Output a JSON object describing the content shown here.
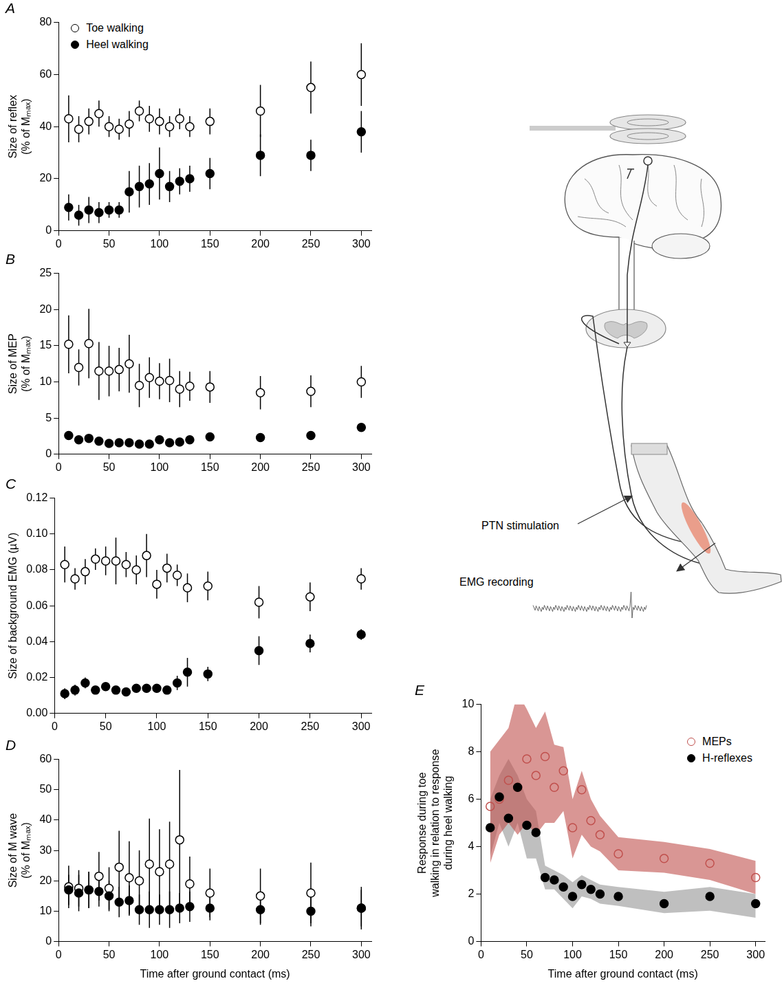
{
  "chart_data": [
    {
      "panel": "A",
      "type": "scatter",
      "y_label": [
        "Size of reflex",
        "(% of Mₘₐₓ)"
      ],
      "x": [
        10,
        20,
        30,
        40,
        50,
        60,
        70,
        80,
        90,
        100,
        110,
        120,
        130,
        150,
        200,
        250,
        300
      ],
      "xlim": [
        0,
        310
      ],
      "xticks": [
        0,
        50,
        100,
        150,
        200,
        250,
        300
      ],
      "ylim": [
        0,
        80
      ],
      "yticks": [
        0,
        20,
        40,
        60,
        80
      ],
      "grid": false,
      "legend": "top-left",
      "series": [
        {
          "name": "Toe walking",
          "color": "#000000",
          "marker": "open_circle",
          "values": [
            43,
            39,
            42,
            45,
            40,
            39,
            41,
            46,
            43,
            42,
            40,
            43,
            40,
            42,
            46,
            55,
            60
          ],
          "errors": [
            9,
            5,
            5,
            5,
            4,
            4,
            5,
            4,
            5,
            5,
            4,
            4,
            4,
            5,
            10,
            10,
            12
          ]
        },
        {
          "name": "Heel walking",
          "color": "#000000",
          "marker": "filled_circle",
          "values": [
            9,
            6,
            8,
            7,
            8,
            8,
            15,
            17,
            18,
            22,
            17,
            19,
            20,
            22,
            29,
            29,
            38
          ],
          "errors": [
            5,
            4,
            5,
            4,
            3,
            3,
            8,
            8,
            8,
            10,
            6,
            5,
            5,
            6,
            8,
            6,
            8
          ]
        }
      ]
    },
    {
      "panel": "B",
      "type": "scatter",
      "y_label": [
        "Size of MEP",
        "(% of Mₘₐₓ)"
      ],
      "x": [
        10,
        20,
        30,
        40,
        50,
        60,
        70,
        80,
        90,
        100,
        110,
        120,
        130,
        150,
        200,
        250,
        300
      ],
      "xlim": [
        0,
        310
      ],
      "xticks": [
        0,
        50,
        100,
        150,
        200,
        250,
        300
      ],
      "ylim": [
        0,
        25
      ],
      "yticks": [
        0,
        5,
        10,
        15,
        20,
        25
      ],
      "grid": false,
      "series": [
        {
          "name": "Toe walking",
          "color": "#000000",
          "marker": "open_circle",
          "values": [
            15.2,
            12,
            15.3,
            11.5,
            11.5,
            11.7,
            12.5,
            9.5,
            10.6,
            10.1,
            10.2,
            9,
            9.4,
            9.3,
            8.5,
            8.7,
            10
          ],
          "errors": [
            4,
            2.5,
            4.8,
            4,
            3.5,
            3,
            4,
            3,
            2.8,
            2.5,
            3,
            2.5,
            2,
            2.2,
            2.3,
            2.2,
            2.2
          ]
        },
        {
          "name": "Heel walking",
          "color": "#000000",
          "marker": "filled_circle",
          "values": [
            2.6,
            2,
            2.2,
            1.8,
            1.5,
            1.6,
            1.6,
            1.4,
            1.4,
            2,
            1.6,
            1.7,
            2,
            2.4,
            2.3,
            2.6,
            3.7
          ],
          "errors": [
            0.4,
            0.4,
            0.4,
            0.4,
            0.4,
            0.4,
            0.4,
            0.4,
            0.4,
            0.4,
            0.4,
            0.4,
            0.4,
            0.4,
            0.4,
            0.4,
            0.4
          ]
        }
      ]
    },
    {
      "panel": "C",
      "type": "scatter",
      "y_label": "Size of background EMG (µV)",
      "x": [
        10,
        20,
        30,
        40,
        50,
        60,
        70,
        80,
        90,
        100,
        110,
        120,
        130,
        150,
        200,
        250,
        300
      ],
      "xlim": [
        0,
        310
      ],
      "xticks": [
        0,
        50,
        100,
        150,
        200,
        250,
        300
      ],
      "ylim": [
        0,
        0.12
      ],
      "yticks": [
        {
          "value": 0,
          "label": "0.00"
        },
        0.02,
        0.04,
        0.06,
        0.08,
        {
          "value": 0.1,
          "label": "0.10"
        },
        0.12
      ],
      "grid": false,
      "series": [
        {
          "name": "Toe walking",
          "color": "#000000",
          "marker": "open_circle",
          "values": [
            0.083,
            0.075,
            0.079,
            0.086,
            0.085,
            0.085,
            0.083,
            0.08,
            0.088,
            0.072,
            0.081,
            0.077,
            0.07,
            0.071,
            0.062,
            0.065,
            0.075
          ],
          "errors": [
            0.01,
            0.006,
            0.007,
            0.006,
            0.008,
            0.013,
            0.007,
            0.008,
            0.012,
            0.008,
            0.008,
            0.006,
            0.008,
            0.008,
            0.009,
            0.008,
            0.006
          ]
        },
        {
          "name": "Heel walking",
          "color": "#000000",
          "marker": "filled_circle",
          "values": [
            0.011,
            0.013,
            0.017,
            0.013,
            0.015,
            0.013,
            0.012,
            0.014,
            0.014,
            0.014,
            0.013,
            0.017,
            0.023,
            0.022,
            0.035,
            0.039,
            0.044
          ],
          "errors": [
            0.003,
            0.003,
            0.003,
            0.002,
            0.002,
            0.002,
            0.002,
            0.002,
            0.002,
            0.002,
            0.002,
            0.004,
            0.008,
            0.004,
            0.008,
            0.005,
            0.003
          ]
        }
      ]
    },
    {
      "panel": "D",
      "type": "scatter",
      "y_label": [
        "Size of M wave",
        "(% of Mₘₐₓ)"
      ],
      "x_label": "Time after ground contact (ms)",
      "x": [
        10,
        20,
        30,
        40,
        50,
        60,
        70,
        80,
        90,
        100,
        110,
        120,
        130,
        150,
        200,
        250,
        300
      ],
      "xlim": [
        0,
        310
      ],
      "xticks": [
        0,
        50,
        100,
        150,
        200,
        250,
        300
      ],
      "ylim": [
        0,
        60
      ],
      "yticks": [
        0,
        10,
        20,
        30,
        40,
        50,
        60
      ],
      "grid": false,
      "series": [
        {
          "name": "Toe walking",
          "color": "#000000",
          "marker": "open_circle",
          "values": [
            18,
            17.5,
            17,
            21.5,
            17.5,
            24.5,
            21,
            20,
            25.5,
            23,
            25.5,
            33.5,
            19,
            16,
            15,
            16,
            11
          ],
          "errors": [
            7,
            6,
            6,
            8,
            7,
            12,
            12,
            10,
            15,
            14,
            14,
            23,
            9,
            8,
            9,
            10,
            7
          ]
        },
        {
          "name": "Heel walking",
          "color": "#000000",
          "marker": "filled_circle",
          "values": [
            17,
            16,
            17,
            16.5,
            15,
            13,
            13.5,
            10.5,
            10.5,
            10.5,
            10.5,
            11,
            11.5,
            11,
            10.5,
            10,
            11
          ],
          "errors": [
            5,
            6,
            6,
            5,
            5,
            5,
            5,
            5,
            6,
            5,
            6,
            5,
            5,
            4,
            5,
            5,
            6
          ]
        }
      ]
    },
    {
      "panel": "E",
      "type": "scatter",
      "y_label": [
        "Response during toe",
        "walking in relation to response",
        "during heel walking"
      ],
      "x_label": "Time after ground contact (ms)",
      "x": [
        10,
        20,
        30,
        40,
        50,
        60,
        70,
        80,
        90,
        100,
        110,
        120,
        130,
        150,
        200,
        250,
        300
      ],
      "xlim": [
        0,
        310
      ],
      "xticks": [
        0,
        50,
        100,
        150,
        200,
        250,
        300
      ],
      "ylim": [
        0,
        10
      ],
      "yticks": [
        0,
        2,
        4,
        6,
        8,
        10
      ],
      "grid": false,
      "legend": "top-right",
      "series": [
        {
          "name": "MEPs",
          "color": "#c0504d",
          "marker": "open_circle",
          "values": [
            5.7,
            6,
            6.8,
            6.5,
            7.7,
            7,
            7.8,
            6.5,
            7.2,
            4.8,
            6.4,
            5.1,
            4.5,
            3.7,
            3.5,
            3.3,
            2.7
          ],
          "upper": [
            8,
            8.5,
            9,
            10.5,
            9.8,
            9,
            9.7,
            8.3,
            8.2,
            6,
            7.2,
            6,
            5.3,
            4.4,
            4.2,
            3.9,
            3.4
          ],
          "lower": [
            3.3,
            4.5,
            5,
            4.5,
            5,
            4.5,
            5,
            5,
            5.5,
            3.5,
            4.5,
            4,
            3.8,
            3,
            2.9,
            2.6,
            2
          ]
        },
        {
          "name": "H-reflexes",
          "color": "#000000",
          "marker": "filled_circle",
          "values": [
            4.8,
            6.1,
            5.2,
            6.5,
            4.9,
            4.6,
            2.7,
            2.6,
            2.3,
            1.9,
            2.4,
            2.2,
            2,
            1.9,
            1.6,
            1.9,
            1.6
          ],
          "upper": [
            6,
            7,
            7.7,
            7,
            6,
            5.5,
            3.2,
            3,
            2.8,
            2.5,
            2.8,
            2.6,
            2.4,
            2.3,
            2.1,
            2.3,
            2
          ],
          "lower": [
            3.6,
            5,
            4,
            5,
            3.5,
            3.5,
            2.2,
            2.2,
            1.8,
            1.4,
            1.9,
            1.8,
            1.6,
            1.5,
            1.2,
            1.3,
            1
          ]
        }
      ]
    }
  ],
  "diagram": {
    "stimulation_label": "PTN stimulation",
    "recording_label": "EMG recording"
  }
}
